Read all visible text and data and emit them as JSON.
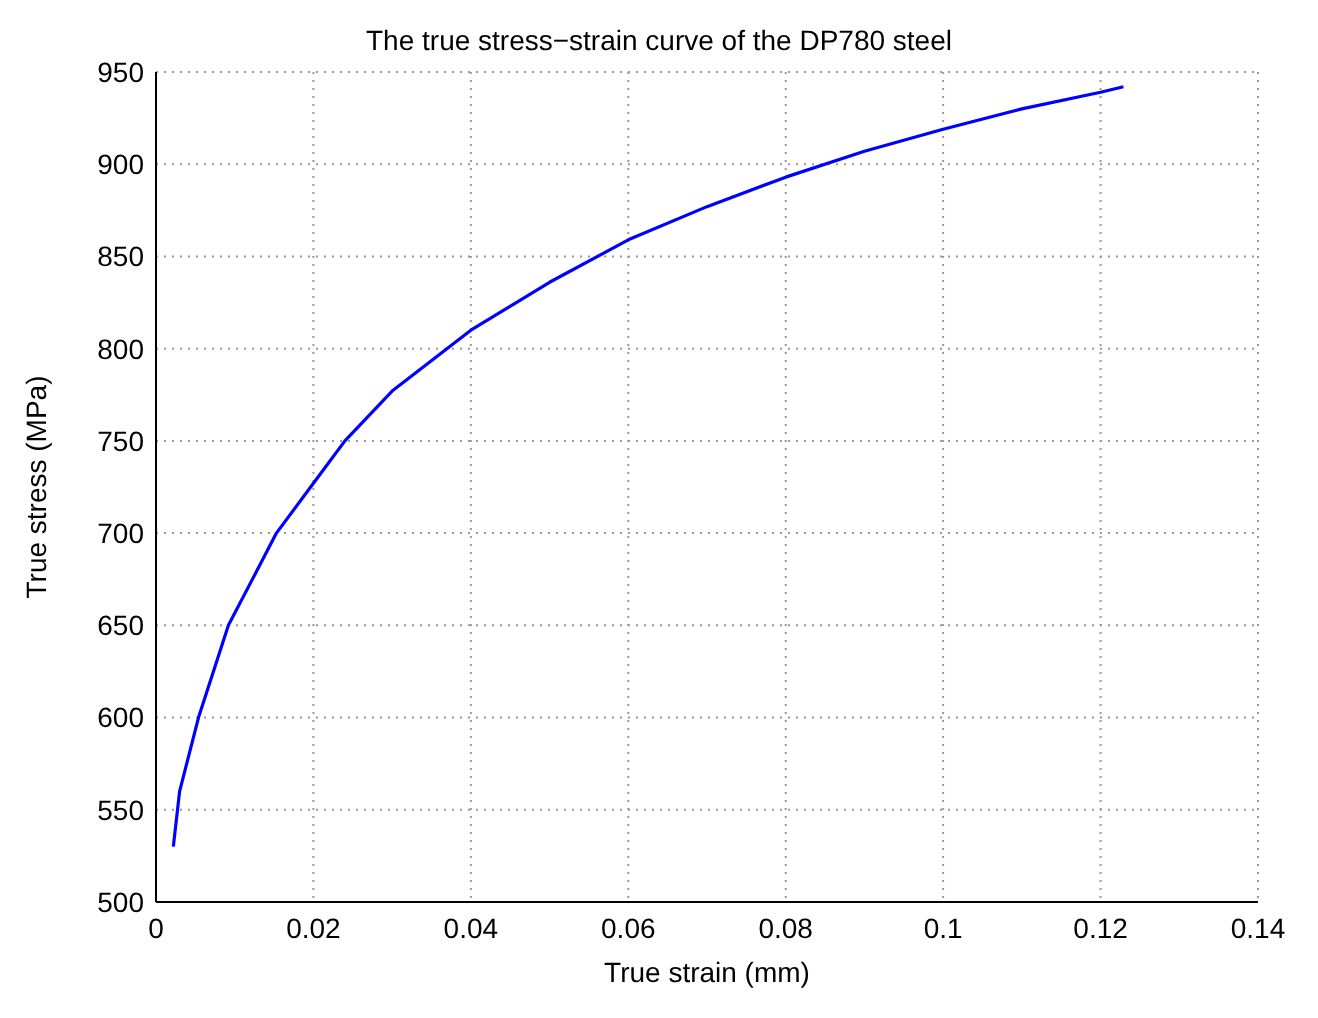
{
  "chart_data": {
    "type": "line",
    "title": "The true stress−strain curve of the DP780 steel",
    "xlabel": "True strain (mm)",
    "ylabel": "True stress (MPa)",
    "x": [
      0.0022,
      0.003,
      0.0054,
      0.0092,
      0.0153,
      0.02,
      0.024,
      0.03,
      0.04,
      0.05,
      0.06,
      0.07,
      0.08,
      0.09,
      0.1,
      0.11,
      0.12,
      0.1229
    ],
    "series": [
      {
        "color": "#0000ff",
        "values": [
          530,
          560,
          600,
          650,
          700,
          727,
          750,
          777,
          810,
          836,
          859,
          877,
          893,
          907,
          919,
          930,
          939,
          942
        ]
      }
    ],
    "xlim": [
      0,
      0.14
    ],
    "xticks": [
      0,
      0.02,
      0.04,
      0.06,
      0.08,
      0.1,
      0.12,
      0.14
    ],
    "ylim": [
      500,
      950
    ],
    "yticks": [
      500,
      550,
      600,
      650,
      700,
      750,
      800,
      850,
      900,
      950
    ],
    "grid": true,
    "line_style": "solid",
    "marker": "none",
    "legend": false
  }
}
